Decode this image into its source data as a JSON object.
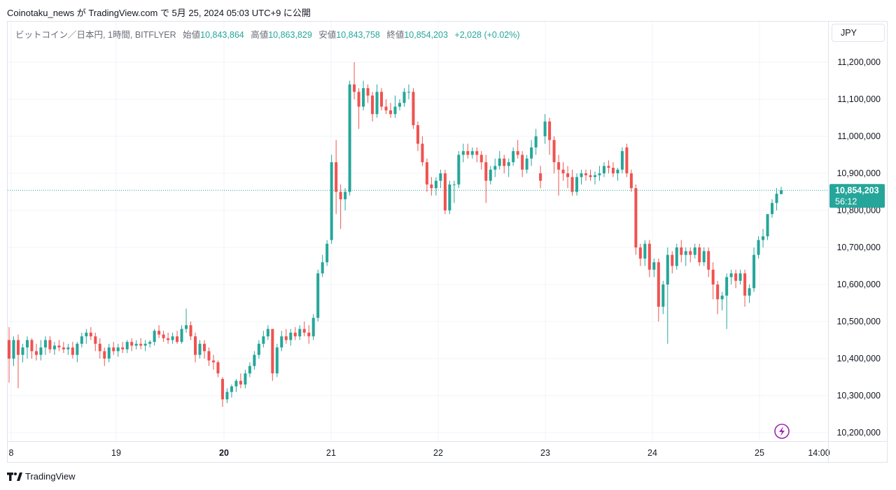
{
  "header": {
    "text": "Coinotaku_news が TradingView.com で 5月 25, 2024 05:03 UTC+9 に公開"
  },
  "legend": {
    "symbol": "ビットコイン／日本円, 1時間, BITFLYER",
    "open_label": "始値",
    "open": "10,843,864",
    "high_label": "高値",
    "high": "10,863,829",
    "low_label": "安値",
    "low": "10,843,758",
    "close_label": "終値",
    "close": "10,854,203",
    "change": "+2,028 (+0.02%)"
  },
  "currency_button": "JPY",
  "footer": {
    "brand": "TradingView",
    "logo_icon": "tradingview-logo-icon"
  },
  "colors": {
    "up": "#26a69a",
    "down": "#ef5350",
    "grid": "#f0f3fa",
    "axis_text": "#131722"
  },
  "chart_data": {
    "type": "candlestick",
    "y_axis_labels": [
      "11,200,000",
      "11,100,000",
      "11,000,000",
      "10,900,000",
      "10,800,000",
      "10,700,000",
      "10,600,000",
      "10,500,000",
      "10,400,000",
      "10,300,000",
      "10,200,000"
    ],
    "ylim": [
      10180000,
      11240000
    ],
    "x_axis_labels": [
      "8",
      "19",
      "20",
      "21",
      "22",
      "23",
      "24",
      "25",
      "14:00"
    ],
    "x_bold_labels": [
      "20"
    ],
    "current_price": {
      "price": 10854203,
      "price_label": "10,854,203",
      "countdown": "56:12"
    },
    "legend_placement": "top-left",
    "grid": true,
    "candles": [
      [
        10450000,
        10485000,
        10335000,
        10400000
      ],
      [
        10400000,
        10460000,
        10380000,
        10450000
      ],
      [
        10450000,
        10465000,
        10320000,
        10410000
      ],
      [
        10410000,
        10440000,
        10390000,
        10430000
      ],
      [
        10430000,
        10460000,
        10400000,
        10450000
      ],
      [
        10450000,
        10455000,
        10400000,
        10420000
      ],
      [
        10420000,
        10440000,
        10395000,
        10410000
      ],
      [
        10410000,
        10450000,
        10395000,
        10430000
      ],
      [
        10430000,
        10460000,
        10410000,
        10450000
      ],
      [
        10450000,
        10460000,
        10415000,
        10425000
      ],
      [
        10425000,
        10445000,
        10410000,
        10435000
      ],
      [
        10435000,
        10450000,
        10420000,
        10430000
      ],
      [
        10430000,
        10445000,
        10415000,
        10425000
      ],
      [
        10425000,
        10440000,
        10410000,
        10430000
      ],
      [
        10430000,
        10445000,
        10400000,
        10410000
      ],
      [
        10410000,
        10445000,
        10390000,
        10440000
      ],
      [
        10440000,
        10470000,
        10430000,
        10460000
      ],
      [
        10460000,
        10480000,
        10440000,
        10470000
      ],
      [
        10470000,
        10485000,
        10450000,
        10460000
      ],
      [
        10460000,
        10470000,
        10420000,
        10440000
      ],
      [
        10440000,
        10455000,
        10400000,
        10420000
      ],
      [
        10420000,
        10430000,
        10380000,
        10400000
      ],
      [
        10400000,
        10440000,
        10390000,
        10430000
      ],
      [
        10430000,
        10445000,
        10410000,
        10420000
      ],
      [
        10420000,
        10440000,
        10405000,
        10430000
      ],
      [
        10430000,
        10445000,
        10415000,
        10425000
      ],
      [
        10425000,
        10450000,
        10415000,
        10445000
      ],
      [
        10445000,
        10455000,
        10420000,
        10435000
      ],
      [
        10435000,
        10450000,
        10425000,
        10440000
      ],
      [
        10440000,
        10455000,
        10425000,
        10435000
      ],
      [
        10435000,
        10450000,
        10420000,
        10440000
      ],
      [
        10440000,
        10450000,
        10430000,
        10445000
      ],
      [
        10445000,
        10480000,
        10435000,
        10475000
      ],
      [
        10475000,
        10490000,
        10455000,
        10465000
      ],
      [
        10465000,
        10475000,
        10445000,
        10455000
      ],
      [
        10455000,
        10470000,
        10440000,
        10450000
      ],
      [
        10450000,
        10470000,
        10440000,
        10460000
      ],
      [
        10460000,
        10475000,
        10440000,
        10445000
      ],
      [
        10445000,
        10490000,
        10440000,
        10480000
      ],
      [
        10480000,
        10535000,
        10470000,
        10490000
      ],
      [
        10490000,
        10500000,
        10450000,
        10460000
      ],
      [
        10460000,
        10470000,
        10390000,
        10410000
      ],
      [
        10410000,
        10450000,
        10400000,
        10440000
      ],
      [
        10440000,
        10450000,
        10400000,
        10420000
      ],
      [
        10420000,
        10430000,
        10380000,
        10395000
      ],
      [
        10395000,
        10410000,
        10370000,
        10390000
      ],
      [
        10390000,
        10395000,
        10350000,
        10360000
      ],
      [
        10345000,
        10350000,
        10270000,
        10290000
      ],
      [
        10290000,
        10320000,
        10280000,
        10310000
      ],
      [
        10310000,
        10330000,
        10295000,
        10325000
      ],
      [
        10325000,
        10345000,
        10310000,
        10340000
      ],
      [
        10340000,
        10360000,
        10320000,
        10330000
      ],
      [
        10330000,
        10370000,
        10320000,
        10360000
      ],
      [
        10360000,
        10390000,
        10350000,
        10380000
      ],
      [
        10380000,
        10420000,
        10370000,
        10410000
      ],
      [
        10410000,
        10450000,
        10400000,
        10440000
      ],
      [
        10440000,
        10475000,
        10430000,
        10460000
      ],
      [
        10460000,
        10490000,
        10450000,
        10480000
      ],
      [
        10480000,
        10480000,
        10340000,
        10360000
      ],
      [
        10360000,
        10440000,
        10350000,
        10430000
      ],
      [
        10430000,
        10475000,
        10420000,
        10460000
      ],
      [
        10460000,
        10480000,
        10440000,
        10450000
      ],
      [
        10450000,
        10480000,
        10435000,
        10470000
      ],
      [
        10470000,
        10485000,
        10450000,
        10460000
      ],
      [
        10460000,
        10490000,
        10450000,
        10480000
      ],
      [
        10480000,
        10500000,
        10460000,
        10470000
      ],
      [
        10470000,
        10490000,
        10440000,
        10460000
      ],
      [
        10460000,
        10520000,
        10450000,
        10510000
      ],
      [
        10510000,
        10640000,
        10500000,
        10630000
      ],
      [
        10630000,
        10680000,
        10620000,
        10660000
      ],
      [
        10660000,
        10720000,
        10650000,
        10710000
      ],
      [
        10720000,
        10950000,
        10710000,
        10930000
      ],
      [
        10930000,
        10990000,
        10790000,
        10850000
      ],
      [
        10850000,
        10870000,
        10750000,
        10830000
      ],
      [
        10830000,
        10860000,
        10800000,
        10850000
      ],
      [
        10850000,
        11150000,
        10840000,
        11140000
      ],
      [
        11140000,
        11200000,
        11100000,
        11120000
      ],
      [
        11120000,
        11130000,
        11020000,
        11080000
      ],
      [
        11080000,
        11150000,
        11070000,
        11130000
      ],
      [
        11130000,
        11140000,
        11090000,
        11110000
      ],
      [
        11110000,
        11120000,
        11040000,
        11060000
      ],
      [
        11060000,
        11140000,
        11050000,
        11120000
      ],
      [
        11120000,
        11130000,
        11070000,
        11080000
      ],
      [
        11080000,
        11100000,
        11060000,
        11070000
      ],
      [
        11070000,
        11090000,
        11050000,
        11060000
      ],
      [
        11060000,
        11110000,
        11050000,
        11080000
      ],
      [
        11080000,
        11100000,
        11070000,
        11090000
      ],
      [
        11090000,
        11130000,
        11080000,
        11120000
      ],
      [
        11120000,
        11140000,
        11100000,
        11120000
      ],
      [
        11120000,
        11130000,
        11020000,
        11030000
      ],
      [
        11030000,
        11040000,
        10960000,
        10980000
      ],
      [
        10980000,
        11000000,
        10920000,
        10930000
      ],
      [
        10930000,
        10940000,
        10850000,
        10870000
      ],
      [
        10870000,
        10890000,
        10840000,
        10860000
      ],
      [
        10860000,
        10890000,
        10840000,
        10880000
      ],
      [
        10880000,
        10910000,
        10860000,
        10900000
      ],
      [
        10900000,
        10910000,
        10790000,
        10800000
      ],
      [
        10800000,
        10880000,
        10790000,
        10870000
      ],
      [
        10870000,
        10880000,
        10820000,
        10870000
      ],
      [
        10870000,
        10960000,
        10860000,
        10950000
      ],
      [
        10950000,
        10980000,
        10930000,
        10960000
      ],
      [
        10960000,
        10980000,
        10940000,
        10950000
      ],
      [
        10950000,
        10970000,
        10940000,
        10960000
      ],
      [
        10960000,
        10970000,
        10930000,
        10950000
      ],
      [
        10950000,
        10960000,
        10910000,
        10930000
      ],
      [
        10930000,
        10950000,
        10820000,
        10880000
      ],
      [
        10880000,
        10920000,
        10870000,
        10910000
      ],
      [
        10910000,
        10940000,
        10890000,
        10920000
      ],
      [
        10920000,
        10960000,
        10910000,
        10940000
      ],
      [
        10940000,
        10950000,
        10900000,
        10920000
      ],
      [
        10920000,
        10940000,
        10890000,
        10930000
      ],
      [
        10930000,
        10970000,
        10920000,
        10960000
      ],
      [
        10960000,
        10990000,
        10940000,
        10950000
      ],
      [
        10950000,
        10960000,
        10890000,
        10910000
      ],
      [
        10910000,
        10950000,
        10900000,
        10940000
      ],
      [
        10940000,
        10990000,
        10920000,
        10970000
      ],
      [
        10970000,
        11020000,
        10950000,
        11000000
      ],
      [
        10900000,
        10920000,
        10860000,
        10880000
      ],
      [
        11000000,
        11060000,
        10980000,
        11040000
      ],
      [
        11040000,
        11050000,
        10950000,
        10990000
      ],
      [
        10990000,
        11000000,
        10900000,
        10930000
      ],
      [
        10930000,
        10950000,
        10840000,
        10910000
      ],
      [
        10910000,
        10930000,
        10880000,
        10900000
      ],
      [
        10900000,
        10920000,
        10860000,
        10890000
      ],
      [
        10890000,
        10910000,
        10840000,
        10850000
      ],
      [
        10850000,
        10900000,
        10840000,
        10890000
      ],
      [
        10890000,
        10910000,
        10870000,
        10900000
      ],
      [
        10900000,
        10910000,
        10880000,
        10895000
      ],
      [
        10895000,
        10910000,
        10880000,
        10890000
      ],
      [
        10890000,
        10905000,
        10870000,
        10895000
      ],
      [
        10895000,
        10920000,
        10880000,
        10900000
      ],
      [
        10900000,
        10930000,
        10890000,
        10920000
      ],
      [
        10920000,
        10935000,
        10900000,
        10915000
      ],
      [
        10915000,
        10930000,
        10890000,
        10900000
      ],
      [
        10900000,
        10915000,
        10880000,
        10910000
      ],
      [
        10910000,
        10970000,
        10900000,
        10960000
      ],
      [
        10970000,
        10980000,
        10890000,
        10900000
      ],
      [
        10900000,
        10910000,
        10850000,
        10860000
      ],
      [
        10860000,
        10870000,
        10680000,
        10700000
      ],
      [
        10700000,
        10710000,
        10650000,
        10670000
      ],
      [
        10670000,
        10720000,
        10650000,
        10710000
      ],
      [
        10710000,
        10720000,
        10620000,
        10640000
      ],
      [
        10640000,
        10670000,
        10620000,
        10660000
      ],
      [
        10660000,
        10670000,
        10500000,
        10540000
      ],
      [
        10540000,
        10610000,
        10520000,
        10600000
      ],
      [
        10600000,
        10700000,
        10440000,
        10680000
      ],
      [
        10680000,
        10690000,
        10630000,
        10650000
      ],
      [
        10650000,
        10710000,
        10640000,
        10700000
      ],
      [
        10700000,
        10720000,
        10660000,
        10680000
      ],
      [
        10680000,
        10700000,
        10650000,
        10690000
      ],
      [
        10690000,
        10700000,
        10660000,
        10680000
      ],
      [
        10680000,
        10710000,
        10670000,
        10700000
      ],
      [
        10700000,
        10710000,
        10650000,
        10660000
      ],
      [
        10660000,
        10700000,
        10650000,
        10690000
      ],
      [
        10690000,
        10700000,
        10620000,
        10640000
      ],
      [
        10640000,
        10660000,
        10560000,
        10600000
      ],
      [
        10600000,
        10610000,
        10520000,
        10560000
      ],
      [
        10560000,
        10580000,
        10530000,
        10570000
      ],
      [
        10570000,
        10630000,
        10480000,
        10620000
      ],
      [
        10620000,
        10640000,
        10600000,
        10630000
      ],
      [
        10630000,
        10640000,
        10590000,
        10610000
      ],
      [
        10610000,
        10640000,
        10600000,
        10630000
      ],
      [
        10630000,
        10640000,
        10540000,
        10570000
      ],
      [
        10570000,
        10600000,
        10550000,
        10590000
      ],
      [
        10590000,
        10700000,
        10580000,
        10680000
      ],
      [
        10680000,
        10730000,
        10670000,
        10720000
      ],
      [
        10720000,
        10750000,
        10700000,
        10730000
      ],
      [
        10730000,
        10790000,
        10720000,
        10790000
      ],
      [
        10790000,
        10830000,
        10780000,
        10820000
      ],
      [
        10820000,
        10860000,
        10800000,
        10845000
      ],
      [
        10843864,
        10863829,
        10843758,
        10854203
      ]
    ]
  }
}
